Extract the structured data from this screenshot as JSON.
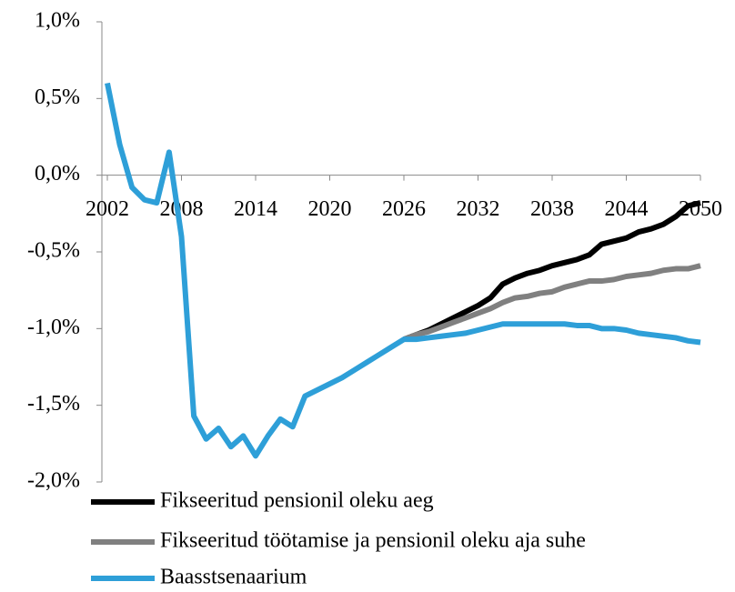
{
  "chart_data": {
    "type": "line",
    "x": [
      2002,
      2003,
      2004,
      2005,
      2006,
      2007,
      2008,
      2009,
      2010,
      2011,
      2012,
      2013,
      2014,
      2015,
      2016,
      2017,
      2018,
      2019,
      2020,
      2021,
      2022,
      2023,
      2024,
      2025,
      2026,
      2027,
      2028,
      2029,
      2030,
      2031,
      2032,
      2033,
      2034,
      2035,
      2036,
      2037,
      2038,
      2039,
      2040,
      2041,
      2042,
      2043,
      2044,
      2045,
      2046,
      2047,
      2048,
      2049,
      2050
    ],
    "xlim": [
      2002,
      2050
    ],
    "xticks": [
      2002,
      2008,
      2014,
      2020,
      2026,
      2032,
      2038,
      2044,
      2050
    ],
    "ylim": [
      -2.0,
      1.0
    ],
    "yticks": [
      {
        "value": 1.0,
        "label": "1,0%"
      },
      {
        "value": 0.5,
        "label": "0,5%"
      },
      {
        "value": 0.0,
        "label": "0,0%"
      },
      {
        "value": -0.5,
        "label": "-0,5%"
      },
      {
        "value": -1.0,
        "label": "-1,0%"
      },
      {
        "value": -1.5,
        "label": "-1,5%"
      },
      {
        "value": -2.0,
        "label": "-2,0%"
      }
    ],
    "series": [
      {
        "name": "Fikseeritud pensionil oleku aeg",
        "color": "#000000",
        "values": [
          null,
          null,
          null,
          null,
          null,
          null,
          null,
          null,
          null,
          null,
          null,
          null,
          null,
          null,
          null,
          null,
          null,
          null,
          null,
          null,
          null,
          null,
          null,
          null,
          -1.07,
          -1.04,
          -1.01,
          -0.97,
          -0.93,
          -0.89,
          -0.85,
          -0.8,
          -0.71,
          -0.67,
          -0.64,
          -0.62,
          -0.59,
          -0.57,
          -0.55,
          -0.52,
          -0.45,
          -0.43,
          -0.41,
          -0.37,
          -0.35,
          -0.32,
          -0.27,
          -0.2,
          -0.18
        ]
      },
      {
        "name": "Fikseeritud töötamise ja pensionil oleku aja suhe",
        "color": "#808080",
        "values": [
          null,
          null,
          null,
          null,
          null,
          null,
          null,
          null,
          null,
          null,
          null,
          null,
          null,
          null,
          null,
          null,
          null,
          null,
          null,
          null,
          null,
          null,
          null,
          null,
          -1.07,
          -1.04,
          -1.02,
          -0.99,
          -0.96,
          -0.93,
          -0.9,
          -0.87,
          -0.83,
          -0.8,
          -0.79,
          -0.77,
          -0.76,
          -0.73,
          -0.71,
          -0.69,
          -0.69,
          -0.68,
          -0.66,
          -0.65,
          -0.64,
          -0.62,
          -0.61,
          -0.61,
          -0.59
        ]
      },
      {
        "name": "Baasstsenaarium",
        "color": "#2e9fd8",
        "values": [
          0.6,
          0.2,
          -0.08,
          -0.16,
          -0.18,
          0.15,
          -0.4,
          -1.57,
          -1.72,
          -1.65,
          -1.77,
          -1.7,
          -1.83,
          -1.7,
          -1.59,
          -1.64,
          -1.44,
          -1.4,
          -1.36,
          -1.32,
          -1.27,
          -1.22,
          -1.17,
          -1.12,
          -1.07,
          -1.07,
          -1.06,
          -1.05,
          -1.04,
          -1.03,
          -1.01,
          -0.99,
          -0.97,
          -0.97,
          -0.97,
          -0.97,
          -0.97,
          -0.97,
          -0.98,
          -0.98,
          -1.0,
          -1.0,
          -1.01,
          -1.03,
          -1.04,
          -1.05,
          -1.06,
          -1.08,
          -1.09
        ]
      }
    ]
  }
}
